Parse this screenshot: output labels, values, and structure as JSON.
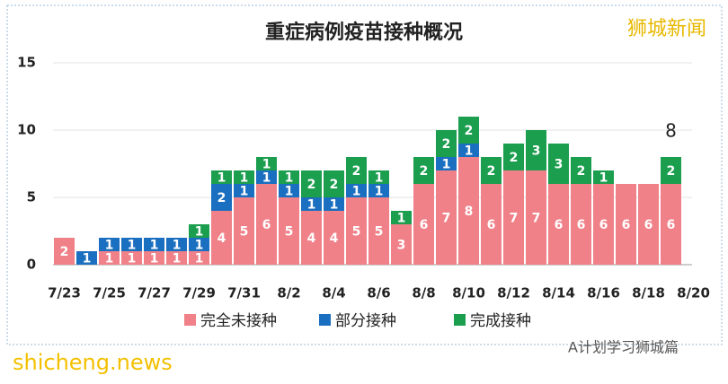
{
  "chart_data": {
    "type": "stacked-bar",
    "title": "重症病例疫苗接种概况",
    "categories": [
      "7/23",
      null,
      "7/25",
      null,
      "7/27",
      null,
      "7/29",
      null,
      "7/31",
      null,
      "8/2",
      null,
      "8/4",
      null,
      "8/6",
      null,
      "8/8",
      null,
      "8/10",
      null,
      "8/12",
      null,
      "8/14",
      null,
      "8/16",
      null,
      "8/18",
      null,
      "8/20"
    ],
    "series": [
      {
        "name": "完全未接种",
        "color": "#f08189",
        "values": [
          2,
          null,
          1,
          1,
          1,
          1,
          1,
          4,
          5,
          6,
          5,
          4,
          4,
          5,
          5,
          3,
          6,
          7,
          8,
          6,
          7,
          7,
          6,
          6,
          6,
          6,
          6,
          6,
          null
        ]
      },
      {
        "name": "部分接种",
        "color": "#1b6fc0",
        "values": [
          null,
          1,
          1,
          1,
          1,
          1,
          1,
          2,
          1,
          1,
          1,
          1,
          1,
          1,
          1,
          null,
          null,
          1,
          1,
          null,
          null,
          null,
          null,
          null,
          null,
          null,
          null,
          null,
          null
        ]
      },
      {
        "name": "完成接种",
        "color": "#1c9e4f",
        "values": [
          null,
          null,
          null,
          null,
          null,
          null,
          1,
          1,
          1,
          1,
          1,
          2,
          2,
          2,
          1,
          1,
          2,
          2,
          2,
          2,
          2,
          3,
          3,
          2,
          1,
          null,
          null,
          2,
          null
        ]
      }
    ],
    "ylim": [
      0,
      15
    ],
    "yticks": [
      0,
      5,
      10,
      15
    ],
    "grid": true,
    "annotation": "8",
    "watermark": "狮城新闻",
    "footer_left": "shicheng.news",
    "footer_right": "A计划学习狮城篇"
  }
}
